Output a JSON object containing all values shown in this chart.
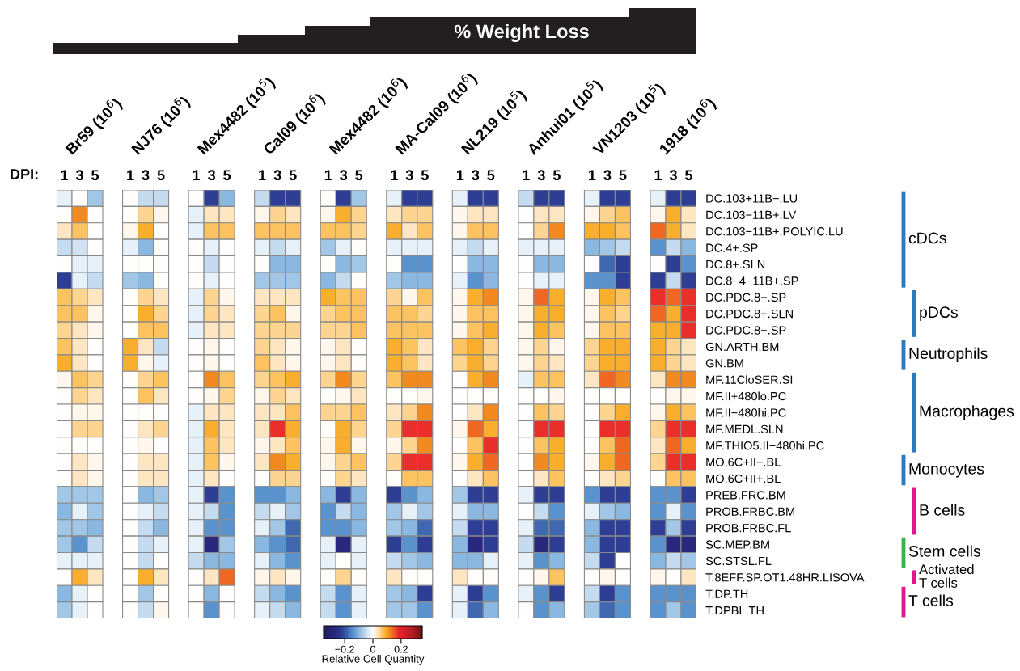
{
  "chart_data": {
    "type": "heatmap",
    "clim": [
      -0.35,
      0.35
    ],
    "cticks": [
      {
        "value": -0.2,
        "label": "−0.2"
      },
      0,
      0.2
    ],
    "clabel": "Relative Cell Quantity",
    "annotations": [
      "DPI:",
      "% Weight Loss",
      "Br59 (10$^{6}$)",
      "NJ76 (10$^{6}$)",
      "Mex4482 (10$^{5}$)",
      "Cal09 (10$^{6}$)",
      "Mex4482 (10$^{6}$)",
      "MA-Cal09 (10$^{6}$)",
      "NL219 (10$^{5}$)",
      "Anhui01 (10$^{5}$)",
      "VN1203 (10$^{5}$)",
      "1918 (10$^{6}$)",
      "cDCs",
      "pDCs",
      "Neutrophils",
      "Macrophages",
      "Monocytes",
      "B cells",
      "Stem cells",
      "Activated\nT cells",
      "T cells"
    ],
    "categories": [
      "1",
      "3",
      "5",
      null,
      "1",
      "3",
      "5",
      null,
      "1",
      "3",
      "5",
      null,
      "1",
      "3",
      "5",
      null,
      "1",
      "3",
      "5",
      null,
      "1",
      "3",
      "5",
      null,
      "1",
      "3",
      "5",
      null,
      "1",
      "3",
      "5",
      null,
      "1",
      "3",
      "5",
      null,
      "1",
      "3",
      "5"
    ],
    "y_categories": [
      "DC.103+11B−.LU",
      "DC.103−11B+.LV",
      "DC.103−11B+.POLYIC.LU",
      "DC.4+.SP",
      "DC.8+.SLN",
      "DC.8−4−11B+.SP",
      "DC.PDC.8−.SP",
      "DC.PDC.8+.SLN",
      "DC.PDC.8+.SP",
      "GN.ARTH.BM",
      "GN.BM",
      "MF.11CloSER.SI",
      "MF.II+480lo.PC",
      "MF.II−480hi.PC",
      "MF.MEDL.SLN",
      "MF.THIO5.II−480hi.PC",
      "MO.6C+II−.BL",
      "MO.6C+II+.BL",
      "PREB.FRC.BM",
      "PROB.FRBC.BM",
      "PROB.FRBC.FL",
      "SC.MEP.BM",
      "SC.STSL.FL",
      "T.8EFF.SP.OT1.48HR.LISOVA",
      "T.DP.TH",
      "T.DPBL.TH"
    ],
    "cells": [
      [
        -0.02,
        0,
        -0.08,
        null,
        0,
        -0.05,
        -0.05,
        null,
        0,
        -0.22,
        -0.1,
        null,
        -0.05,
        -0.22,
        -0.22,
        null,
        0,
        -0.22,
        -0.08,
        null,
        -0.02,
        -0.22,
        -0.22,
        null,
        -0.02,
        -0.22,
        -0.22,
        null,
        -0.05,
        -0.22,
        -0.22,
        null,
        -0.02,
        -0.22,
        -0.22,
        null,
        -0.02,
        -0.22,
        -0.22
      ],
      [
        0,
        0.12,
        0,
        null,
        0,
        0.05,
        0.01,
        null,
        -0.02,
        0.03,
        0.03,
        null,
        0.01,
        0.05,
        0.03,
        null,
        0.01,
        0.09,
        0.05,
        null,
        0.03,
        0.05,
        0.05,
        null,
        0.01,
        0.03,
        0.03,
        null,
        0,
        0.03,
        0.03,
        null,
        0.01,
        0.05,
        0.07,
        null,
        0.01,
        0.09,
        0.03
      ],
      [
        0.03,
        0.07,
        0,
        null,
        0.01,
        0.09,
        0,
        null,
        -0.02,
        0.07,
        0.07,
        null,
        0.07,
        0.07,
        0.07,
        null,
        0.07,
        0.07,
        0.05,
        null,
        0.09,
        0.03,
        0.07,
        null,
        0.01,
        0.07,
        0.07,
        null,
        0,
        0.05,
        0.12,
        null,
        0.09,
        0.09,
        0.07,
        null,
        0.14,
        0.09,
        0.03
      ],
      [
        -0.05,
        -0.04,
        0,
        null,
        -0.02,
        -0.1,
        0,
        null,
        0,
        -0.02,
        0,
        null,
        -0.02,
        -0.05,
        -0.02,
        null,
        -0.08,
        -0.02,
        0,
        null,
        -0.02,
        -0.02,
        -0.02,
        null,
        -0.02,
        -0.05,
        -0.02,
        null,
        -0.02,
        -0.02,
        -0.02,
        null,
        -0.1,
        -0.08,
        -0.05,
        null,
        -0.14,
        -0.05,
        -0.1
      ],
      [
        0,
        -0.02,
        -0.02,
        null,
        0,
        0,
        0,
        null,
        0,
        -0.05,
        0,
        null,
        0,
        -0.1,
        -0.1,
        null,
        0,
        -0.1,
        -0.08,
        null,
        0,
        -0.14,
        -0.14,
        null,
        0,
        -0.1,
        -0.1,
        null,
        0,
        -0.1,
        -0.1,
        null,
        0,
        -0.18,
        -0.22,
        null,
        0,
        -0.22,
        -0.14
      ],
      [
        -0.22,
        -0.02,
        -0.05,
        null,
        -0.08,
        -0.1,
        0,
        null,
        0,
        -0.02,
        0,
        null,
        -0.08,
        -0.08,
        -0.08,
        null,
        -0.1,
        -0.05,
        0,
        null,
        -0.08,
        -0.1,
        -0.1,
        null,
        -0.02,
        -0.14,
        -0.1,
        null,
        0,
        -0.02,
        -0.02,
        null,
        -0.14,
        -0.14,
        -0.22,
        null,
        -0.22,
        -0.05,
        -0.22
      ],
      [
        0.07,
        0.05,
        0.03,
        null,
        0,
        0.05,
        0.03,
        null,
        -0.02,
        0.05,
        0.01,
        null,
        0.03,
        0.03,
        0.03,
        null,
        0.09,
        0.07,
        0.07,
        null,
        0.05,
        0.01,
        0.07,
        null,
        0.01,
        0.09,
        0.12,
        null,
        0.01,
        0.14,
        0.09,
        null,
        0.01,
        0.09,
        0.07,
        null,
        0.18,
        0.14,
        0.18
      ],
      [
        0.07,
        0.07,
        0.01,
        null,
        0,
        0.09,
        0.05,
        null,
        -0.02,
        0.05,
        0.03,
        null,
        0.05,
        0.07,
        0.01,
        null,
        0.05,
        0.07,
        0.07,
        null,
        0.07,
        0.07,
        0.05,
        null,
        0.01,
        0.07,
        0.07,
        null,
        0.01,
        0.09,
        0.09,
        null,
        0.01,
        0.07,
        0.05,
        null,
        0.14,
        0.09,
        0.18
      ],
      [
        0.05,
        0.03,
        0.01,
        null,
        0,
        0.07,
        0.07,
        null,
        -0.02,
        0.03,
        0.03,
        null,
        0.05,
        0.05,
        0.05,
        null,
        0.05,
        0.05,
        0.07,
        null,
        0.07,
        0.07,
        0.07,
        null,
        0.01,
        0.07,
        0.09,
        null,
        0.01,
        0.09,
        0.07,
        null,
        0.01,
        0.07,
        0.07,
        null,
        0.09,
        0.09,
        0.18
      ],
      [
        0.07,
        0.03,
        0,
        null,
        0.09,
        0.03,
        -0.05,
        null,
        0,
        0.01,
        0,
        null,
        0.05,
        0.03,
        0.01,
        null,
        0.01,
        0.03,
        0,
        null,
        0.09,
        0.07,
        0.03,
        null,
        0.07,
        0.09,
        0.05,
        null,
        0.01,
        0.05,
        0.01,
        null,
        0.05,
        0.09,
        0.09,
        null,
        0.09,
        0.05,
        0.03
      ],
      [
        0.09,
        0.03,
        0,
        null,
        0.09,
        0.01,
        -0.02,
        null,
        0,
        0.01,
        0,
        null,
        0.07,
        0.03,
        0.01,
        null,
        0.01,
        0.03,
        0,
        null,
        0.09,
        0.07,
        0.03,
        null,
        0.05,
        0.09,
        0.05,
        null,
        0.01,
        0.05,
        0.03,
        null,
        0.05,
        0.09,
        0.09,
        null,
        0.09,
        0.05,
        0.03
      ],
      [
        0.01,
        0.07,
        0.05,
        null,
        0,
        0.05,
        0.07,
        null,
        0,
        0.12,
        0.07,
        null,
        0.05,
        0.07,
        0.09,
        null,
        0.05,
        0.12,
        0.05,
        null,
        0.07,
        0.12,
        0.12,
        null,
        0,
        0.09,
        0.12,
        null,
        -0.02,
        0.07,
        0.07,
        null,
        0.03,
        0.14,
        0.12,
        null,
        0.03,
        0.12,
        0.12
      ],
      [
        0,
        0.05,
        0.03,
        null,
        0,
        0.07,
        0.03,
        null,
        0,
        0.01,
        0.05,
        null,
        0.01,
        0.05,
        0.03,
        null,
        0,
        0.01,
        0.03,
        null,
        0,
        0,
        0.01,
        null,
        0,
        0,
        0,
        null,
        0,
        0,
        0.01,
        null,
        0,
        0,
        0,
        null,
        0,
        0.01,
        0.01
      ],
      [
        0,
        0.01,
        0.01,
        null,
        0,
        0,
        0,
        null,
        -0.02,
        0.03,
        0.03,
        null,
        0.03,
        0.03,
        0.07,
        null,
        0.05,
        0.05,
        0.07,
        null,
        0.03,
        0.05,
        0.12,
        null,
        0,
        0.03,
        0.12,
        null,
        0,
        0.07,
        0.05,
        null,
        0,
        0.05,
        0.09,
        null,
        0.01,
        0.09,
        0.07
      ],
      [
        0,
        0.05,
        0.05,
        null,
        0,
        0.03,
        0.05,
        null,
        -0.02,
        0.09,
        0.03,
        null,
        0.03,
        0.18,
        0.09,
        null,
        0,
        0.09,
        0.05,
        null,
        0.05,
        0.18,
        0.18,
        null,
        0.01,
        0.14,
        0.09,
        null,
        0,
        0.18,
        0.18,
        null,
        0,
        0.18,
        0.18,
        null,
        0.05,
        0.18,
        0.18
      ],
      [
        0,
        0,
        0,
        null,
        0,
        0.01,
        0,
        null,
        -0.02,
        0.07,
        0.03,
        null,
        0.01,
        0.03,
        0.07,
        null,
        0.01,
        0.09,
        0.01,
        null,
        0.01,
        0.05,
        0.12,
        null,
        0,
        0.07,
        0.18,
        null,
        0,
        0.07,
        0.09,
        null,
        0,
        0.07,
        0.14,
        null,
        0.03,
        0.14,
        0.09
      ],
      [
        0,
        0.03,
        0.01,
        null,
        0,
        0.03,
        0.03,
        null,
        -0.02,
        0.07,
        0.01,
        null,
        0.03,
        0.12,
        0.09,
        null,
        0.01,
        0.05,
        0.07,
        null,
        0.05,
        0.18,
        0.18,
        null,
        0.01,
        0.09,
        0.14,
        null,
        0,
        0.12,
        0.09,
        null,
        0.01,
        0.09,
        0.14,
        null,
        0.05,
        0.18,
        0.18
      ],
      [
        0,
        0.03,
        0.01,
        null,
        0,
        0.03,
        0.03,
        null,
        -0.02,
        0.03,
        0,
        null,
        0,
        0.05,
        0.05,
        null,
        0,
        0.05,
        0.03,
        null,
        0,
        0.07,
        0.07,
        null,
        0,
        0.03,
        0.07,
        null,
        0,
        0.03,
        0.07,
        null,
        0,
        0.03,
        0.05,
        null,
        0,
        0.07,
        0.07
      ],
      [
        -0.08,
        -0.08,
        -0.08,
        null,
        0,
        -0.1,
        -0.08,
        null,
        -0.02,
        -0.22,
        -0.14,
        null,
        -0.14,
        -0.14,
        -0.1,
        null,
        -0.1,
        -0.22,
        -0.1,
        null,
        -0.22,
        -0.14,
        -0.1,
        null,
        -0.08,
        -0.22,
        -0.22,
        null,
        -0.02,
        -0.22,
        -0.22,
        null,
        -0.14,
        -0.22,
        -0.22,
        null,
        -0.14,
        -0.14,
        -0.22
      ],
      [
        -0.1,
        -0.02,
        -0.08,
        null,
        0,
        -0.02,
        -0.05,
        null,
        -0.02,
        -0.05,
        -0.14,
        null,
        -0.05,
        -0.02,
        -0.08,
        null,
        -0.14,
        -0.05,
        -0.1,
        null,
        -0.08,
        -0.02,
        -0.08,
        null,
        -0.02,
        -0.1,
        -0.1,
        null,
        0,
        -0.05,
        -0.14,
        null,
        -0.02,
        -0.08,
        -0.1,
        null,
        -0.14,
        -0.02,
        -0.14
      ],
      [
        -0.08,
        -0.08,
        -0.1,
        null,
        0,
        -0.05,
        -0.1,
        null,
        -0.02,
        -0.14,
        -0.14,
        null,
        -0.02,
        -0.08,
        -0.18,
        null,
        -0.14,
        -0.14,
        -0.1,
        null,
        -0.08,
        -0.1,
        -0.18,
        null,
        -0.05,
        -0.22,
        -0.22,
        null,
        -0.02,
        -0.18,
        -0.18,
        null,
        -0.1,
        -0.22,
        -0.22,
        null,
        -0.22,
        -0.08,
        -0.22
      ],
      [
        -0.08,
        -0.14,
        -0.05,
        null,
        0,
        -0.05,
        -0.02,
        null,
        -0.02,
        -0.27,
        -0.08,
        null,
        -0.1,
        -0.14,
        -0.18,
        null,
        -0.02,
        -0.27,
        -0.02,
        null,
        -0.22,
        -0.14,
        -0.22,
        null,
        -0.1,
        -0.27,
        -0.22,
        null,
        -0.05,
        -0.27,
        -0.22,
        null,
        -0.1,
        -0.22,
        -0.22,
        null,
        -0.14,
        -0.27,
        -0.27
      ],
      [
        -0.02,
        -0.02,
        -0.02,
        null,
        0,
        -0.05,
        0,
        null,
        -0.05,
        -0.1,
        -0.1,
        null,
        -0.02,
        -0.1,
        -0.14,
        null,
        -0.02,
        0,
        -0.02,
        null,
        -0.05,
        -0.08,
        -0.1,
        null,
        -0.1,
        -0.1,
        -0.02,
        null,
        -0.02,
        -0.14,
        -0.1,
        null,
        -0.05,
        -0.22,
        0,
        null,
        -0.1,
        -0.05,
        -0.08
      ],
      [
        0,
        0.09,
        0.03,
        null,
        0,
        0.09,
        0.03,
        null,
        0,
        0.03,
        0.14,
        null,
        0.01,
        0.03,
        0.01,
        null,
        0,
        0.05,
        0,
        null,
        0.03,
        0,
        0,
        null,
        0.03,
        0,
        0,
        null,
        0,
        0.01,
        0.07,
        null,
        0,
        0.01,
        0,
        null,
        0.01,
        0,
        0.03
      ],
      [
        -0.1,
        -0.02,
        0,
        null,
        0,
        -0.08,
        0,
        null,
        0,
        -0.1,
        0,
        null,
        -0.05,
        -0.1,
        -0.14,
        null,
        -0.05,
        -0.14,
        -0.02,
        null,
        -0.08,
        -0.1,
        -0.22,
        null,
        -0.02,
        -0.22,
        -0.14,
        null,
        -0.02,
        -0.14,
        -0.22,
        null,
        -0.05,
        -0.22,
        -0.14,
        null,
        -0.14,
        -0.14,
        -0.14
      ],
      [
        -0.08,
        -0.02,
        0,
        null,
        0,
        -0.05,
        0.01,
        null,
        0,
        -0.14,
        0,
        null,
        -0.02,
        -0.05,
        -0.1,
        null,
        -0.05,
        -0.14,
        -0.02,
        null,
        -0.08,
        -0.08,
        -0.14,
        null,
        -0.02,
        -0.18,
        -0.1,
        null,
        0,
        -0.14,
        -0.1,
        null,
        -0.08,
        -0.18,
        -0.14,
        null,
        -0.14,
        -0.08,
        -0.14
      ]
    ]
  }
}
